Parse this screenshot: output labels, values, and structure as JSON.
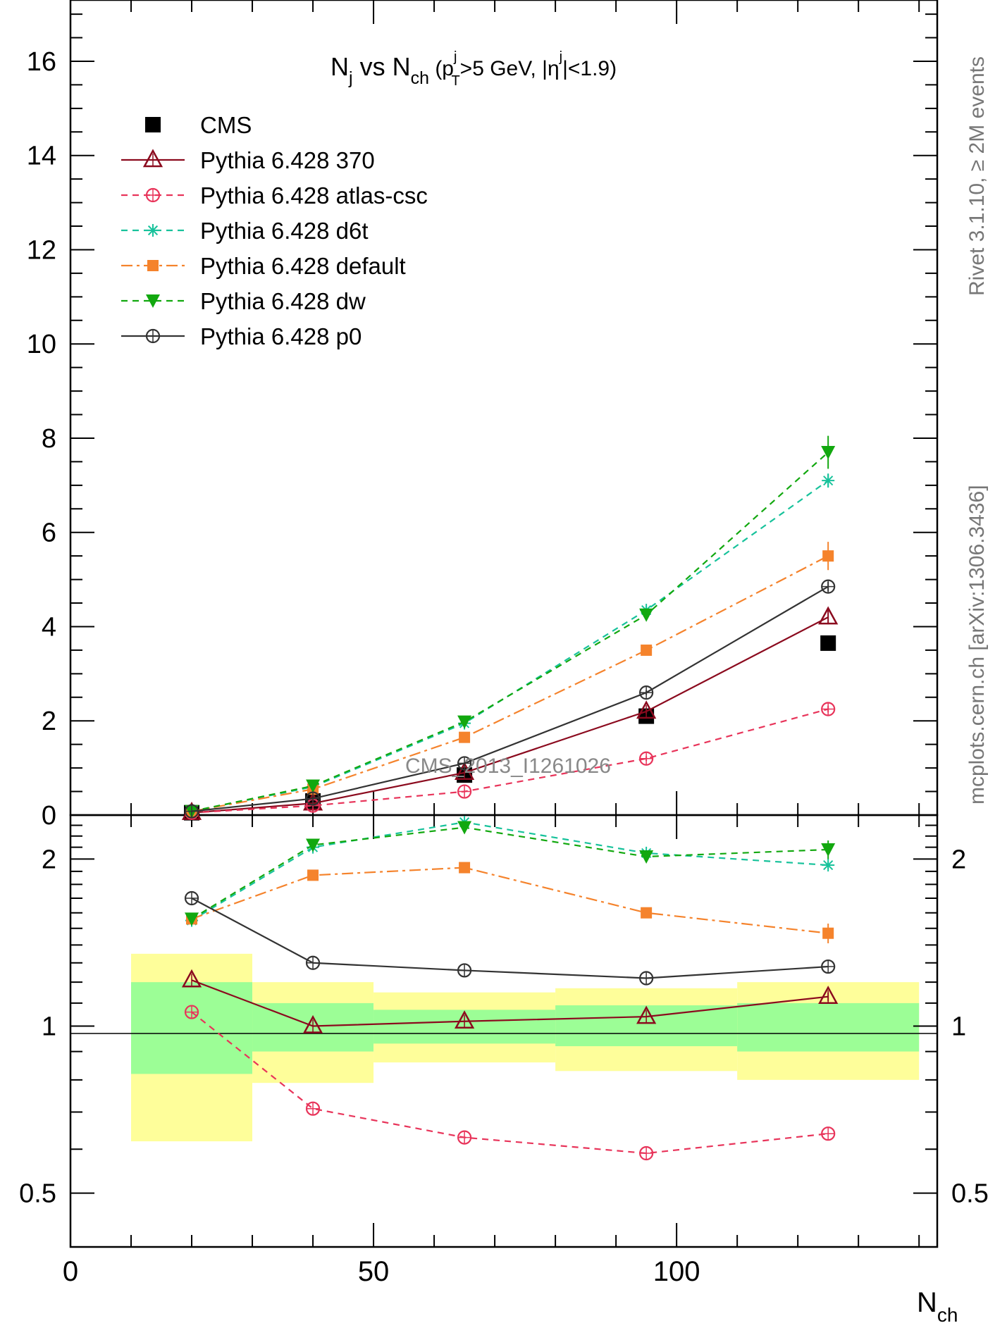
{
  "title": {
    "main": "N",
    "main_sub": "j",
    "vs": " vs N",
    "vs_sub": "ch",
    "cut1": " (p",
    "cut1_sub": "T",
    "cut1_sup": "j",
    "cut2": ">5 GeV, |η",
    "cut2_sup": "j",
    "cut3": "|<1.9)"
  },
  "right_labels": {
    "top": "Rivet 3.1.10, ≥ 2M events",
    "bottom": "mcplots.cern.ch [arXiv:1306.3436]"
  },
  "watermark": "CMS_2013_I1261026",
  "xlabel": {
    "main": "N",
    "sub": "ch"
  },
  "colors": {
    "CMS": "#000000",
    "p370": "#8b0a1e",
    "atlascsc": "#e8345a",
    "d6t": "#17c29b",
    "default": "#f5832c",
    "dw": "#12a80f",
    "p0": "#333333",
    "band_inner": "#9cfe96",
    "band_outer": "#fefe9a"
  },
  "chart_data": [
    {
      "type": "line",
      "panel": "main",
      "xlim": [
        0,
        143
      ],
      "ylim": [
        0,
        17.3
      ],
      "yticks": [
        0,
        2,
        4,
        6,
        8,
        10,
        12,
        14,
        16
      ],
      "ytick_labels": [
        "0",
        "2",
        "4",
        "6",
        "8",
        "10",
        "12",
        "14",
        "16"
      ],
      "x": [
        20,
        40,
        65,
        95,
        125
      ],
      "legend_placement": "top-left",
      "series": [
        {
          "key": "CMS",
          "name": "CMS",
          "values": [
            0.05,
            0.3,
            0.85,
            2.1,
            3.65
          ],
          "errors": [
            0,
            0,
            0,
            0.1,
            0.1
          ]
        },
        {
          "key": "p370",
          "name": "Pythia 6.428 370",
          "values": [
            0.05,
            0.25,
            0.9,
            2.2,
            4.2
          ],
          "errors": [
            0,
            0,
            0,
            0.05,
            0.15
          ]
        },
        {
          "key": "atlascsc",
          "name": "Pythia 6.428 atlas-csc",
          "values": [
            0.05,
            0.2,
            0.5,
            1.2,
            2.25
          ],
          "errors": [
            0,
            0,
            0,
            0.05,
            0.07
          ]
        },
        {
          "key": "d6t",
          "name": "Pythia 6.428 d6t",
          "values": [
            0.08,
            0.6,
            1.95,
            4.35,
            7.1
          ],
          "errors": [
            0,
            0,
            0.05,
            0.08,
            0.15
          ]
        },
        {
          "key": "default",
          "name": "Pythia 6.428 default",
          "values": [
            0.08,
            0.55,
            1.65,
            3.5,
            5.5
          ],
          "errors": [
            0,
            0,
            0.05,
            0.07,
            0.3
          ]
        },
        {
          "key": "dw",
          "name": "Pythia 6.428 dw",
          "values": [
            0.08,
            0.62,
            1.98,
            4.25,
            7.7
          ],
          "errors": [
            0,
            0,
            0.05,
            0.08,
            0.35
          ]
        },
        {
          "key": "p0",
          "name": "Pythia 6.428 p0",
          "values": [
            0.08,
            0.35,
            1.1,
            2.6,
            4.85
          ],
          "errors": [
            0,
            0,
            0,
            0.05,
            0.1
          ]
        }
      ]
    },
    {
      "type": "line",
      "panel": "ratio",
      "xlim": [
        0,
        143
      ],
      "ylim": [
        0.4,
        2.4
      ],
      "yticks": [
        0.5,
        1,
        2
      ],
      "ytick_labels": [
        "0.5",
        "1",
        "2"
      ],
      "xticks": [
        0,
        50,
        100
      ],
      "xtick_labels": [
        "0",
        "50",
        "100"
      ],
      "x": [
        20,
        40,
        65,
        95,
        125
      ],
      "bands": [
        {
          "x0": 10,
          "x1": 30,
          "inner": [
            0.82,
            1.2
          ],
          "outer": [
            0.62,
            1.35
          ]
        },
        {
          "x0": 30,
          "x1": 50,
          "inner": [
            0.9,
            1.1
          ],
          "outer": [
            0.79,
            1.2
          ]
        },
        {
          "x0": 50,
          "x1": 80,
          "inner": [
            0.93,
            1.07
          ],
          "outer": [
            0.86,
            1.15
          ]
        },
        {
          "x0": 80,
          "x1": 110,
          "inner": [
            0.92,
            1.09
          ],
          "outer": [
            0.83,
            1.17
          ]
        },
        {
          "x0": 110,
          "x1": 140,
          "inner": [
            0.9,
            1.1
          ],
          "outer": [
            0.8,
            1.2
          ]
        }
      ],
      "series": [
        {
          "key": "p370",
          "values": [
            1.21,
            1.0,
            1.02,
            1.04,
            1.13
          ],
          "errors": [
            0,
            0,
            0,
            0,
            0.02
          ]
        },
        {
          "key": "atlascsc",
          "values": [
            1.06,
            0.71,
            0.63,
            0.59,
            0.64
          ],
          "errors": [
            0,
            0,
            0,
            0,
            0
          ]
        },
        {
          "key": "d6t",
          "values": [
            1.55,
            2.1,
            2.33,
            2.05,
            1.95
          ],
          "errors": [
            0,
            0,
            0,
            0,
            0.03
          ]
        },
        {
          "key": "default",
          "values": [
            1.56,
            1.87,
            1.93,
            1.6,
            1.47
          ],
          "errors": [
            0,
            0,
            0,
            0,
            0.06
          ]
        },
        {
          "key": "dw",
          "values": [
            1.56,
            2.12,
            2.28,
            2.02,
            2.08
          ],
          "errors": [
            0,
            0,
            0,
            0,
            0.08
          ]
        },
        {
          "key": "p0",
          "values": [
            1.7,
            1.3,
            1.26,
            1.22,
            1.28
          ],
          "errors": [
            0,
            0,
            0,
            0,
            0
          ]
        }
      ]
    }
  ]
}
